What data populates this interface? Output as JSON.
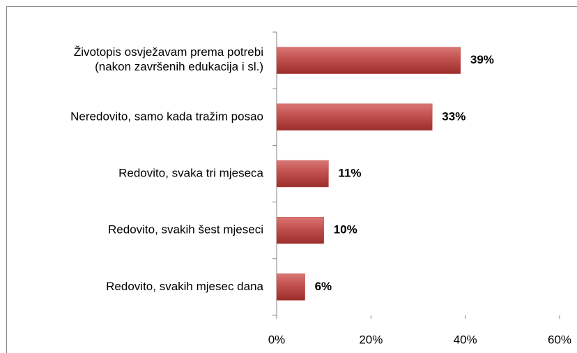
{
  "chart_data": {
    "type": "hbar",
    "categories": [
      "Životopis osvježavam prema potrebi\n(nakon završenih edukacija i sl.)",
      "Neredovito, samo kada tražim posao",
      "Redovito, svaka tri mjeseca",
      "Redovito, svakih šest mjeseci",
      "Redovito, svakih mjesec dana"
    ],
    "values": [
      39,
      33,
      11,
      10,
      6
    ],
    "value_labels": [
      "39%",
      "33%",
      "11%",
      "10%",
      "6%"
    ],
    "color": "#c0504d",
    "xlim": [
      0,
      60
    ],
    "xticks": [
      {
        "value": 0,
        "label": "0%"
      },
      {
        "value": 20,
        "label": "20%"
      },
      {
        "value": 40,
        "label": "40%"
      },
      {
        "value": 60,
        "label": "60%"
      }
    ]
  }
}
